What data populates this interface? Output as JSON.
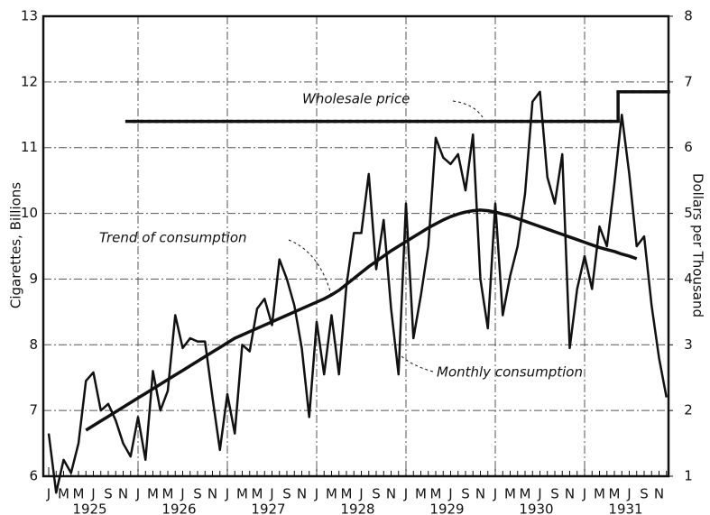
{
  "chart_data": {
    "type": "line",
    "ylabel": "Cigarettes, Billions",
    "y2label": "Dollars per Thousand",
    "categories": [
      "J",
      null,
      "M",
      null,
      "M",
      null,
      "J",
      null,
      "S",
      null,
      "N",
      null,
      "J",
      null,
      "M",
      null,
      "M",
      null,
      "J",
      null,
      "S",
      null,
      "N",
      null,
      "J",
      null,
      "M",
      null,
      "M",
      null,
      "J",
      null,
      "S",
      null,
      "N",
      null,
      "J",
      null,
      "M",
      null,
      "M",
      null,
      "J",
      null,
      "S",
      null,
      "N",
      null,
      "J",
      null,
      "M",
      null,
      "M",
      null,
      "J",
      null,
      "S",
      null,
      "N",
      null,
      "J",
      null,
      "M",
      null,
      "M",
      null,
      "J",
      null,
      "S",
      null,
      "N",
      null,
      "J",
      null,
      "M",
      null,
      "M",
      null,
      "J",
      null,
      "S",
      null,
      "N",
      null
    ],
    "years": [
      "1925",
      "1926",
      "1927",
      "1928",
      "1929",
      "1930",
      "1931"
    ],
    "ylim": [
      6,
      13
    ],
    "yticks": [
      6,
      7,
      8,
      9,
      10,
      11,
      12,
      13
    ],
    "y2lim": [
      1,
      8
    ],
    "y2ticks": [
      1,
      2,
      3,
      4,
      5,
      6,
      7,
      8
    ],
    "grid": true,
    "series": [
      {
        "name": "Monthly consumption",
        "color": "#111111",
        "style": "line",
        "values": [
          6.65,
          5.75,
          6.25,
          6.05,
          6.5,
          7.45,
          7.58,
          7.0,
          7.1,
          6.85,
          6.5,
          6.3,
          6.9,
          6.25,
          7.6,
          7.0,
          7.3,
          8.45,
          7.95,
          8.1,
          8.05,
          8.05,
          7.2,
          6.4,
          7.25,
          6.65,
          8.0,
          7.9,
          8.55,
          8.7,
          8.3,
          9.3,
          9.0,
          8.6,
          7.95,
          6.9,
          8.35,
          7.55,
          8.45,
          7.55,
          8.9,
          9.7,
          9.7,
          10.6,
          9.15,
          9.9,
          8.55,
          7.55,
          10.15,
          8.1,
          8.75,
          9.5,
          11.15,
          10.85,
          10.75,
          10.9,
          10.35,
          11.2,
          9.0,
          8.25,
          10.15,
          8.45,
          9.05,
          9.5,
          10.3,
          11.7,
          11.85,
          10.55,
          10.15,
          10.9,
          7.95,
          8.85,
          9.35,
          8.85,
          9.8,
          9.5,
          10.45,
          11.5,
          10.6,
          9.5,
          9.65,
          8.6,
          7.8,
          7.2
        ]
      },
      {
        "name": "Trend of consumption",
        "color": "#111111",
        "style": "line",
        "values": [
          null,
          null,
          null,
          null,
          null,
          6.7,
          6.77,
          6.84,
          6.91,
          6.98,
          7.05,
          7.12,
          7.19,
          7.26,
          7.33,
          7.4,
          7.47,
          7.54,
          7.61,
          7.68,
          7.75,
          7.82,
          7.89,
          7.96,
          8.03,
          8.1,
          8.15,
          8.2,
          8.25,
          8.3,
          8.35,
          8.4,
          8.45,
          8.5,
          8.55,
          8.6,
          8.65,
          8.7,
          8.76,
          8.83,
          8.92,
          9.01,
          9.1,
          9.19,
          9.27,
          9.35,
          9.43,
          9.5,
          9.57,
          9.64,
          9.71,
          9.78,
          9.84,
          9.9,
          9.95,
          9.99,
          10.02,
          10.04,
          10.05,
          10.04,
          10.02,
          9.99,
          9.96,
          9.92,
          9.88,
          9.84,
          9.8,
          9.76,
          9.72,
          9.68,
          9.64,
          9.6,
          9.56,
          9.52,
          9.48,
          9.45,
          9.42,
          9.38,
          9.35,
          9.31,
          null,
          null,
          null,
          null
        ]
      },
      {
        "name": "Wholesale price",
        "color": "#111111",
        "style": "step",
        "axis": "y2",
        "values": [
          null,
          null,
          null,
          null,
          null,
          null,
          null,
          null,
          null,
          null,
          null,
          6.4,
          6.4,
          6.4,
          6.4,
          6.4,
          6.4,
          6.4,
          6.4,
          6.4,
          6.4,
          6.4,
          6.4,
          6.4,
          6.4,
          6.4,
          6.4,
          6.4,
          6.4,
          6.4,
          6.4,
          6.4,
          6.4,
          6.4,
          6.4,
          6.4,
          6.4,
          6.4,
          6.4,
          6.4,
          6.4,
          6.4,
          6.4,
          6.4,
          6.4,
          6.4,
          6.4,
          6.4,
          6.4,
          6.4,
          6.4,
          6.4,
          6.4,
          6.4,
          6.4,
          6.4,
          6.4,
          6.4,
          6.4,
          6.4,
          6.4,
          6.4,
          6.4,
          6.4,
          6.4,
          6.4,
          6.4,
          6.4,
          6.4,
          6.4,
          6.4,
          6.4,
          6.4,
          6.4,
          6.4,
          6.4,
          6.4,
          6.85,
          6.85,
          6.85,
          6.85,
          6.85,
          6.85,
          6.85
        ]
      }
    ]
  }
}
